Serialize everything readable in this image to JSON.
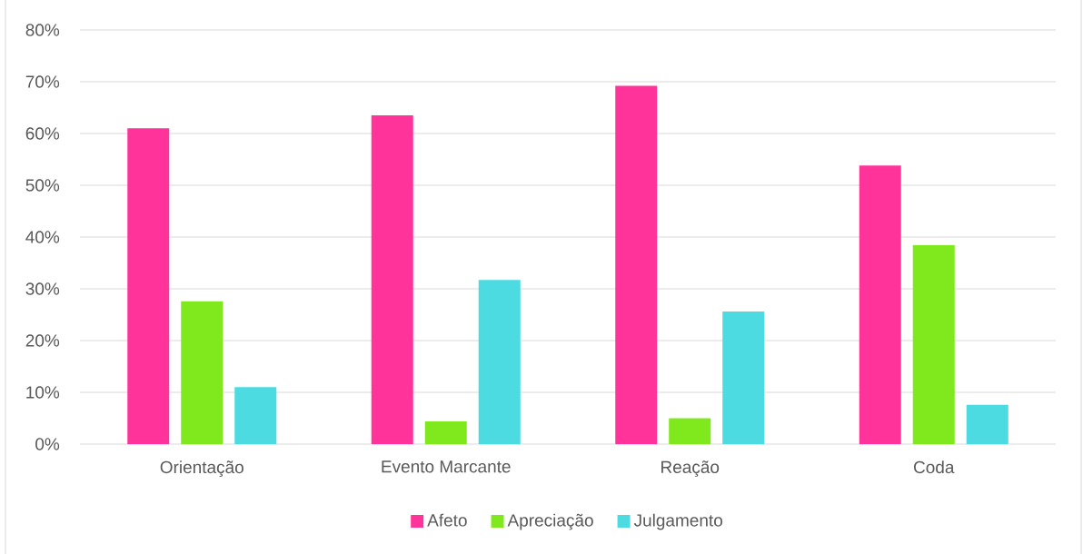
{
  "chart_data": {
    "type": "bar",
    "categories": [
      "Orientação",
      "Evento Marcante",
      "Reação",
      "Coda"
    ],
    "series": [
      {
        "name": "Afeto",
        "color": "#ff3399",
        "values": [
          61.0,
          63.5,
          69.2,
          53.8
        ]
      },
      {
        "name": "Apreciação",
        "color": "#80e91e",
        "values": [
          27.6,
          4.4,
          5.0,
          38.4
        ]
      },
      {
        "name": "Julgamento",
        "color": "#4bdbe0",
        "values": [
          11.0,
          31.7,
          25.6,
          7.6
        ]
      }
    ],
    "ylim": [
      0,
      80
    ],
    "yticks": [
      {
        "value": 0,
        "label": "0%"
      },
      {
        "value": 10,
        "label": "10%"
      },
      {
        "value": 20,
        "label": "20%"
      },
      {
        "value": 30,
        "label": "30%"
      },
      {
        "value": 40,
        "label": "40%"
      },
      {
        "value": 50,
        "label": "50%"
      },
      {
        "value": 60,
        "label": "60%"
      },
      {
        "value": 70,
        "label": "70%"
      },
      {
        "value": 80,
        "label": "80%"
      }
    ],
    "grid": "y",
    "legend": "bottom"
  }
}
